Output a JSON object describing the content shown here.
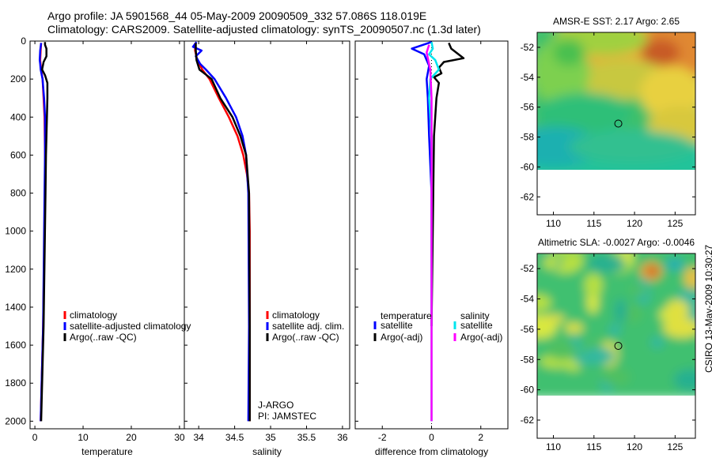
{
  "header": {
    "line1": "Argo profile: JA 5901568_44 05-May-2009 20090509_332 57.086S 118.019E",
    "line2": "Climatology: CARS2009. Satellite-adjusted climatology: synTS_20090507.nc (1.3d later)"
  },
  "credit": "CSIRO 13-May-2009 10:30:27",
  "colors": {
    "clim": "#ff0000",
    "sat": "#0000ff",
    "argo": "#000000",
    "sat_sal": "#00e5ee",
    "argo_sal": "#ff00ff",
    "axis": "#000000"
  },
  "chart_data": [
    {
      "id": "temperature",
      "type": "line",
      "xlabel": "temperature",
      "ylabel": "",
      "xlim": [
        -1,
        31
      ],
      "ylim": [
        2040,
        0
      ],
      "xticks": [
        0,
        10,
        20,
        30
      ],
      "xticklabels": [
        "0",
        "10",
        "20",
        "30"
      ],
      "yticks": [
        0,
        200,
        400,
        600,
        800,
        1000,
        1200,
        1400,
        1600,
        1800,
        2000
      ],
      "yticklabels": [
        "0",
        "200",
        "400",
        "600",
        "800",
        "1000",
        "1200",
        "1400",
        "1600",
        "1800",
        "2000"
      ],
      "legend": {
        "position": "lower-center",
        "entries": [
          "climatology",
          "satellite-adjusted climatology",
          "Argo(..raw -QC)"
        ]
      },
      "series": [
        {
          "name": "climatology",
          "color": "#ff0000",
          "x": [
            1.3,
            1.2,
            1.1,
            1.3,
            1.6,
            1.8,
            2.0,
            2.1,
            2.1,
            2.0,
            1.7,
            1.2
          ],
          "y": [
            10,
            50,
            100,
            150,
            200,
            300,
            400,
            600,
            800,
            1000,
            1500,
            2000
          ]
        },
        {
          "name": "satellite-adjusted climatology",
          "color": "#0000ff",
          "x": [
            1.3,
            1.1,
            1.0,
            1.1,
            1.2,
            1.6,
            1.9,
            2.1,
            2.1,
            2.0,
            1.7,
            1.2
          ],
          "y": [
            10,
            50,
            100,
            120,
            150,
            200,
            300,
            400,
            600,
            800,
            1500,
            2000
          ]
        },
        {
          "name": "Argo(..raw -QC)",
          "color": "#000000",
          "x": [
            2.1,
            2.1,
            2.4,
            2.4,
            1.8,
            1.5,
            2.1,
            2.6,
            2.6,
            2.5,
            2.4,
            2.3,
            2.2,
            1.8,
            1.3
          ],
          "y": [
            5,
            20,
            40,
            80,
            110,
            150,
            180,
            220,
            300,
            400,
            500,
            600,
            800,
            1500,
            2000
          ]
        }
      ]
    },
    {
      "id": "salinity",
      "type": "line",
      "xlabel": "salinity",
      "ylabel": "",
      "xlim": [
        33.8,
        36.1
      ],
      "ylim": [
        2040,
        0
      ],
      "xticks": [
        34,
        34.5,
        35,
        35.5,
        36
      ],
      "xticklabels": [
        "34",
        "34.5",
        "35",
        "35.5",
        "36"
      ],
      "legend": {
        "position": "lower-center",
        "entries": [
          "climatology",
          "satellite adj. clim.",
          "Argo(..raw -QC)"
        ]
      },
      "annotations": [
        "J-ARGO",
        "PI: JAMSTEC"
      ],
      "series": [
        {
          "name": "climatology",
          "color": "#ff0000",
          "x": [
            33.95,
            33.95,
            33.98,
            34.05,
            34.15,
            34.28,
            34.42,
            34.54,
            34.62,
            34.67,
            34.7,
            34.71,
            34.71,
            34.71
          ],
          "y": [
            10,
            50,
            100,
            150,
            200,
            300,
            400,
            500,
            600,
            700,
            800,
            1000,
            1500,
            2000
          ]
        },
        {
          "name": "satellite adj. clim.",
          "color": "#0000ff",
          "x": [
            33.97,
            33.92,
            34.04,
            33.96,
            34.02,
            34.1,
            34.22,
            34.38,
            34.52,
            34.61,
            34.66,
            34.69,
            34.7,
            34.69
          ],
          "y": [
            5,
            30,
            50,
            80,
            120,
            150,
            200,
            300,
            400,
            500,
            600,
            800,
            1500,
            2000
          ]
        },
        {
          "name": "Argo(..raw -QC)",
          "color": "#000000",
          "x": [
            33.96,
            33.96,
            33.97,
            34.01,
            34.18,
            34.3,
            34.47,
            34.58,
            34.66,
            34.7,
            34.71,
            34.71
          ],
          "y": [
            10,
            50,
            100,
            150,
            200,
            300,
            400,
            500,
            600,
            800,
            1500,
            2000
          ]
        }
      ]
    },
    {
      "id": "difference",
      "type": "line",
      "xlabel": "difference from climatology",
      "ylabel": "",
      "xlim": [
        -3.1,
        3.1
      ],
      "ylim": [
        2040,
        0
      ],
      "xticks": [
        -2,
        0,
        2
      ],
      "xticklabels": [
        "-2",
        "0",
        "2"
      ],
      "legend": {
        "position": "lower-center",
        "groups": [
          "temperature",
          "salinity"
        ],
        "entries": [
          "satellite",
          "Argo(-adj)",
          "satellite",
          "Argo(-adj)"
        ]
      },
      "series": [
        {
          "name": "temperature satellite",
          "color": "#0000ff",
          "x": [
            0,
            -0.8,
            -0.3,
            -0.2,
            -0.1,
            -0.2,
            -0.15,
            -0.1,
            0,
            0
          ],
          "y": [
            5,
            40,
            70,
            100,
            130,
            200,
            300,
            500,
            800,
            1500
          ]
        },
        {
          "name": "temperature Argo(-adj)",
          "color": "#000000",
          "x": [
            0.7,
            0.8,
            1.3,
            0.5,
            0.3,
            0.4,
            0.1,
            0.3,
            0.2,
            0.1,
            0
          ],
          "y": [
            10,
            40,
            90,
            110,
            140,
            170,
            190,
            220,
            300,
            500,
            1500
          ]
        },
        {
          "name": "salinity satellite",
          "color": "#00e5ee",
          "x": [
            0,
            0.05,
            -0.1,
            0.15,
            0.3,
            -0.05,
            -0.1,
            0,
            0
          ],
          "y": [
            5,
            40,
            70,
            100,
            150,
            200,
            300,
            500,
            2000
          ]
        },
        {
          "name": "salinity Argo(-adj)",
          "color": "#ff00ff",
          "x": [
            -0.1,
            -0.2,
            -0.15,
            -0.05,
            0,
            0
          ],
          "y": [
            20,
            60,
            90,
            150,
            300,
            2000
          ]
        }
      ]
    },
    {
      "id": "sst_map",
      "type": "heatmap",
      "title": "AMSR-E SST: 2.17 Argo: 2.65",
      "xlim": [
        108,
        127.5
      ],
      "ylim": [
        -63.2,
        -51
      ],
      "xticks": [
        110,
        115,
        120,
        125
      ],
      "xticklabels": [
        "110",
        "115",
        "120",
        "125"
      ],
      "yticks": [
        -52,
        -54,
        -56,
        -58,
        -60,
        -62
      ],
      "yticklabels": [
        "-52",
        "-54",
        "-56",
        "-58",
        "-60",
        "-62"
      ],
      "data_lat_range": [
        -60,
        -51
      ],
      "marker": {
        "lon": 118.0,
        "lat": -57.1
      }
    },
    {
      "id": "sla_map",
      "type": "heatmap",
      "title": "Altimetric SLA: -0.0027 Argo: -0.0046",
      "xlim": [
        108,
        127.5
      ],
      "ylim": [
        -63.2,
        -51
      ],
      "xticks": [
        110,
        115,
        120,
        125
      ],
      "xticklabels": [
        "110",
        "115",
        "120",
        "125"
      ],
      "yticks": [
        -52,
        -54,
        -56,
        -58,
        -60,
        -62
      ],
      "yticklabels": [
        "-52",
        "-54",
        "-56",
        "-58",
        "-60",
        "-62"
      ],
      "data_lat_range": [
        -60,
        -51
      ],
      "marker": {
        "lon": 118.0,
        "lat": -57.1
      }
    }
  ]
}
